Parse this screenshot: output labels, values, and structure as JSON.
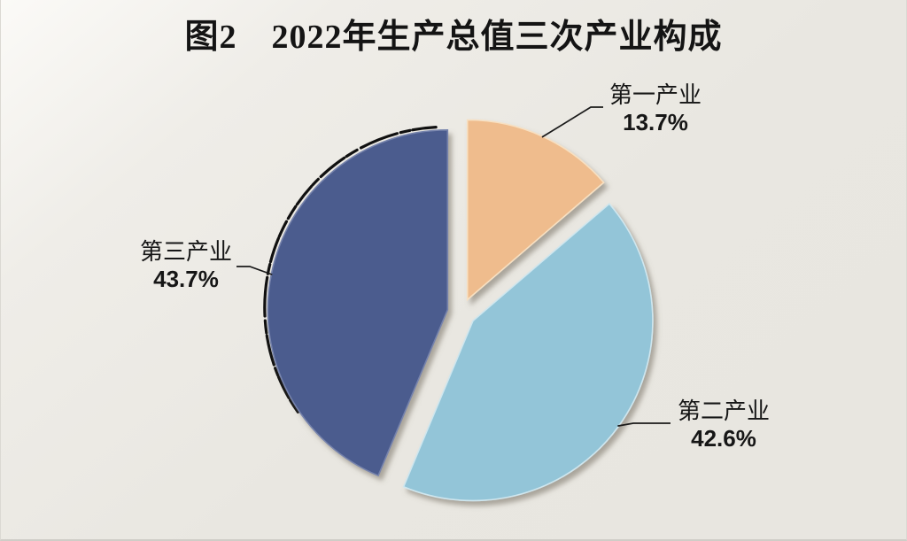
{
  "figure": {
    "title": "图2　2022年生产总值三次产业构成"
  },
  "chart_data": {
    "type": "pie",
    "title": "图2　2022年生产总值三次产业构成",
    "unit": "percent",
    "direction": "clockwise",
    "start_angle_deg": 0,
    "exploded": true,
    "legend": "none",
    "label_style": "outside-with-leader-lines",
    "background_color": "#E9E7E1",
    "slices": [
      {
        "name": "primary-industry",
        "label": "第一产业",
        "value": 13.7,
        "display": "13.7%",
        "color": "#EFBC8D",
        "edge_color": "#F7E0C2"
      },
      {
        "name": "secondary-industry",
        "label": "第二产业",
        "value": 42.6,
        "display": "42.6%",
        "color": "#93C5D8",
        "edge_color": "#CFE6EE"
      },
      {
        "name": "tertiary-industry",
        "label": "第三产业",
        "value": 43.7,
        "display": "43.7%",
        "color": "#4B5B8E",
        "edge_color": "#7683AC",
        "rough_dark_rim": true
      }
    ],
    "leader_line_color": "#1a1a1a",
    "text_color": "#141414"
  }
}
